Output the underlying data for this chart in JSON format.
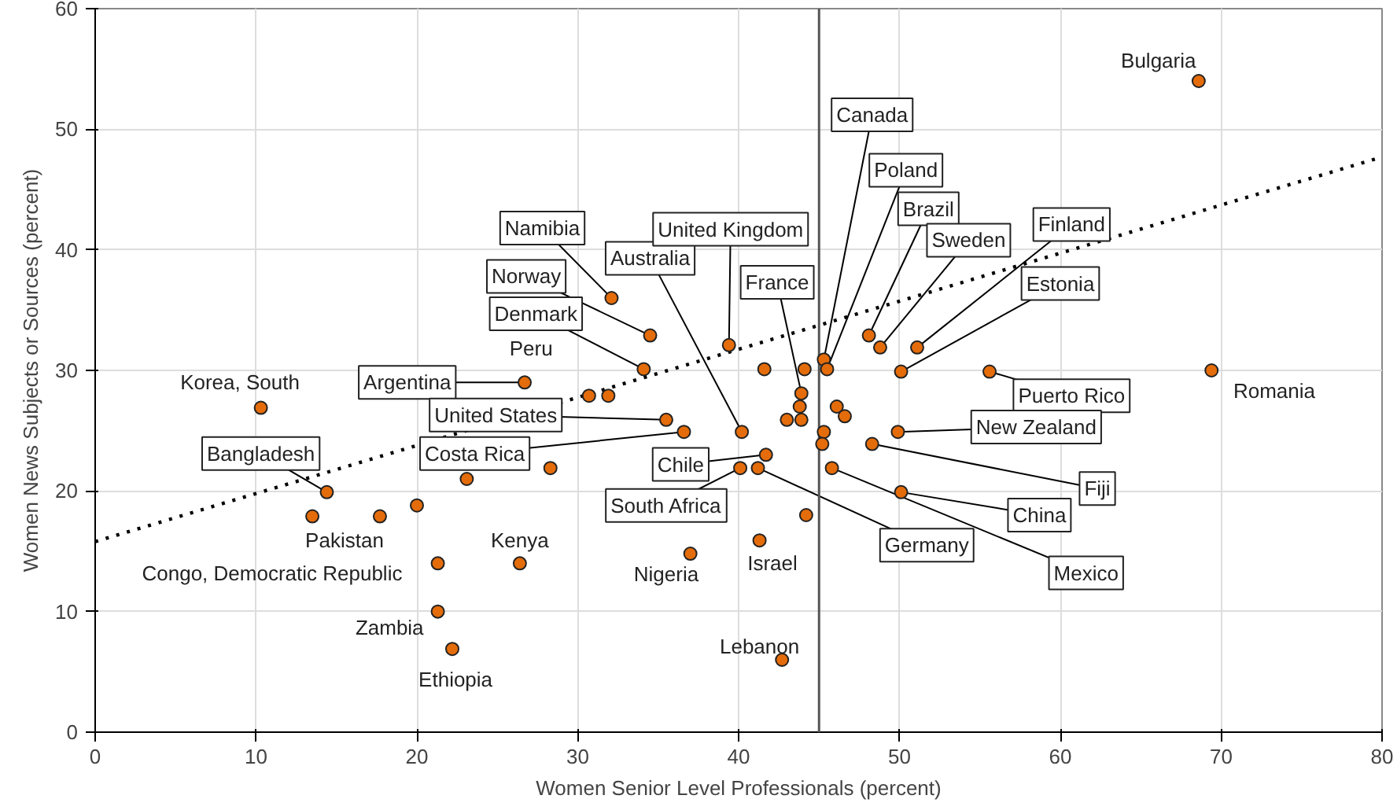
{
  "chart_data": {
    "type": "scatter",
    "xlabel": "Women Senior Level Professionals (percent)",
    "ylabel": "Women News Subjects or Sources (percent)",
    "xlim": [
      0,
      80
    ],
    "xticks": [
      0,
      10,
      20,
      30,
      40,
      50,
      60,
      70,
      80
    ],
    "ylim": [
      0,
      60
    ],
    "yticks": [
      0,
      10,
      20,
      30,
      40,
      50,
      60
    ],
    "grid": true,
    "marker": "circle",
    "series": [
      {
        "color": "#e46c0a",
        "x": [
          68.6,
          69.4,
          10.3,
          14.4,
          13.5,
          21.3,
          21.3,
          22.2,
          26.4,
          37.0,
          41.3,
          42.7,
          30.7,
          26.7,
          35.5,
          36.6,
          32.1,
          34.5,
          34.1,
          40.2,
          39.4,
          43.9,
          41.7,
          40.1,
          41.2,
          45.8,
          45.3,
          45.5,
          48.1,
          48.8,
          51.1,
          50.1,
          55.6,
          49.9,
          48.3,
          50.1,
          17.7,
          20.0,
          23.1,
          28.3,
          31.9,
          41.6,
          43.8,
          43.0,
          43.9,
          44.1,
          46.1,
          46.6,
          45.3,
          45.2,
          44.2
        ],
        "values": [
          54.0,
          30.0,
          26.9,
          19.9,
          17.9,
          14.0,
          10.0,
          6.9,
          14.0,
          14.8,
          15.9,
          6.0,
          27.9,
          29.0,
          25.9,
          24.9,
          36.0,
          32.9,
          30.1,
          24.9,
          32.1,
          28.1,
          23.0,
          21.9,
          21.9,
          21.9,
          30.9,
          30.1,
          32.9,
          31.9,
          31.9,
          29.9,
          29.9,
          24.9,
          23.9,
          19.9,
          17.9,
          18.8,
          21.0,
          21.9,
          27.9,
          30.1,
          27.0,
          25.9,
          25.9,
          30.1,
          27.0,
          26.2,
          24.9,
          23.9,
          18.0
        ]
      },
      {
        "type": "line",
        "color": "#000000",
        "line_style": "dotted",
        "marker": "none",
        "x": [
          0,
          80
        ],
        "values": [
          15.8,
          47.7
        ]
      }
    ],
    "ref_lines": [
      {
        "axis": "x",
        "value": 45,
        "color": "#555555",
        "line_style": "solid"
      }
    ],
    "annotations": [
      {
        "text": "Bulgaria",
        "x": 68.6,
        "y": 54.0
      },
      {
        "text": "Romania",
        "x": 69.4,
        "y": 30.0
      },
      {
        "text": "Korea, South",
        "x": 10.3,
        "y": 26.9
      },
      {
        "text": "Bangladesh",
        "x": 14.4,
        "y": 19.9
      },
      {
        "text": "Pakistan",
        "x": 13.5,
        "y": 17.9
      },
      {
        "text": "Congo, Democratic Republic",
        "x": 21.3,
        "y": 14.0
      },
      {
        "text": "Zambia",
        "x": 21.3,
        "y": 10.0
      },
      {
        "text": "Ethiopia",
        "x": 22.2,
        "y": 6.9
      },
      {
        "text": "Kenya",
        "x": 26.4,
        "y": 14.0
      },
      {
        "text": "Nigeria",
        "x": 37.0,
        "y": 14.8
      },
      {
        "text": "Israel",
        "x": 41.3,
        "y": 15.9
      },
      {
        "text": "Lebanon",
        "x": 42.7,
        "y": 6.0
      },
      {
        "text": "Peru",
        "x": 30.7,
        "y": 27.9
      },
      {
        "text": "Argentina",
        "x": 26.7,
        "y": 29.0
      },
      {
        "text": "United States",
        "x": 35.5,
        "y": 25.9
      },
      {
        "text": "Costa Rica",
        "x": 36.6,
        "y": 24.9
      },
      {
        "text": "Namibia",
        "x": 32.1,
        "y": 36.0
      },
      {
        "text": "Norway",
        "x": 34.5,
        "y": 32.9
      },
      {
        "text": "Denmark",
        "x": 34.1,
        "y": 30.1
      },
      {
        "text": "Australia",
        "x": 40.2,
        "y": 24.9
      },
      {
        "text": "United Kingdom",
        "x": 39.4,
        "y": 32.1
      },
      {
        "text": "France",
        "x": 43.9,
        "y": 28.1
      },
      {
        "text": "Chile",
        "x": 41.7,
        "y": 23.0
      },
      {
        "text": "South Africa",
        "x": 40.1,
        "y": 21.9
      },
      {
        "text": "Germany",
        "x": 41.2,
        "y": 21.9
      },
      {
        "text": "Mexico",
        "x": 45.8,
        "y": 21.9
      },
      {
        "text": "Canada",
        "x": 45.3,
        "y": 30.9
      },
      {
        "text": "Poland",
        "x": 45.5,
        "y": 30.1
      },
      {
        "text": "Brazil",
        "x": 48.1,
        "y": 32.9
      },
      {
        "text": "Sweden",
        "x": 48.8,
        "y": 31.9
      },
      {
        "text": "Finland",
        "x": 51.1,
        "y": 31.9
      },
      {
        "text": "Estonia",
        "x": 50.1,
        "y": 29.9
      },
      {
        "text": "Puerto Rico",
        "x": 55.6,
        "y": 29.9
      },
      {
        "text": "New Zealand",
        "x": 49.9,
        "y": 24.9
      },
      {
        "text": "Fiji",
        "x": 48.3,
        "y": 23.9
      },
      {
        "text": "China",
        "x": 50.1,
        "y": 19.9
      }
    ]
  }
}
